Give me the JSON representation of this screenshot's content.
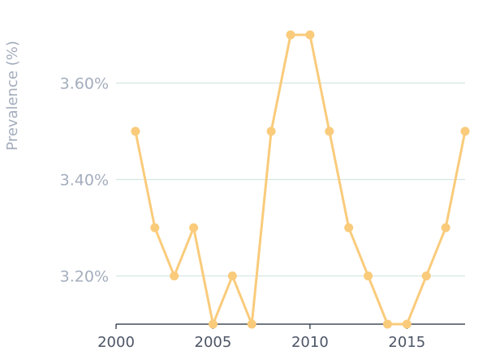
{
  "chart_data": {
    "type": "line",
    "title": "",
    "xlabel": "",
    "ylabel": "Prevalence (%)",
    "x": [
      2001,
      2002,
      2003,
      2004,
      2005,
      2006,
      2007,
      2008,
      2009,
      2010,
      2011,
      2012,
      2013,
      2014,
      2015,
      2016,
      2017,
      2018
    ],
    "series": [
      {
        "values": [
          3.5,
          3.3,
          3.2,
          3.3,
          3.1,
          3.2,
          3.1,
          3.5,
          3.7,
          3.7,
          3.5,
          3.3,
          3.2,
          3.1,
          3.1,
          3.2,
          3.3,
          3.5
        ]
      }
    ],
    "xlim": [
      2000,
      2018
    ],
    "ylim": [
      3.1,
      3.7
    ],
    "xticks": [
      2000,
      2005,
      2010,
      2015
    ],
    "xtick_labels": [
      "2000",
      "2005",
      "2010",
      "2015"
    ],
    "yticks": [
      3.2,
      3.4,
      3.6
    ],
    "ytick_labels": [
      "3.20%",
      "3.40%",
      "3.60%"
    ],
    "grid": "horizontal",
    "legend": "none"
  },
  "colors": {
    "line": "#f9cb7b",
    "gridline": "#d6e6e4",
    "axis": "#1f2937",
    "ytick_text": "#a4adbd",
    "xtick_text": "#4c5566",
    "ylabel_text": "#a4adbd"
  }
}
